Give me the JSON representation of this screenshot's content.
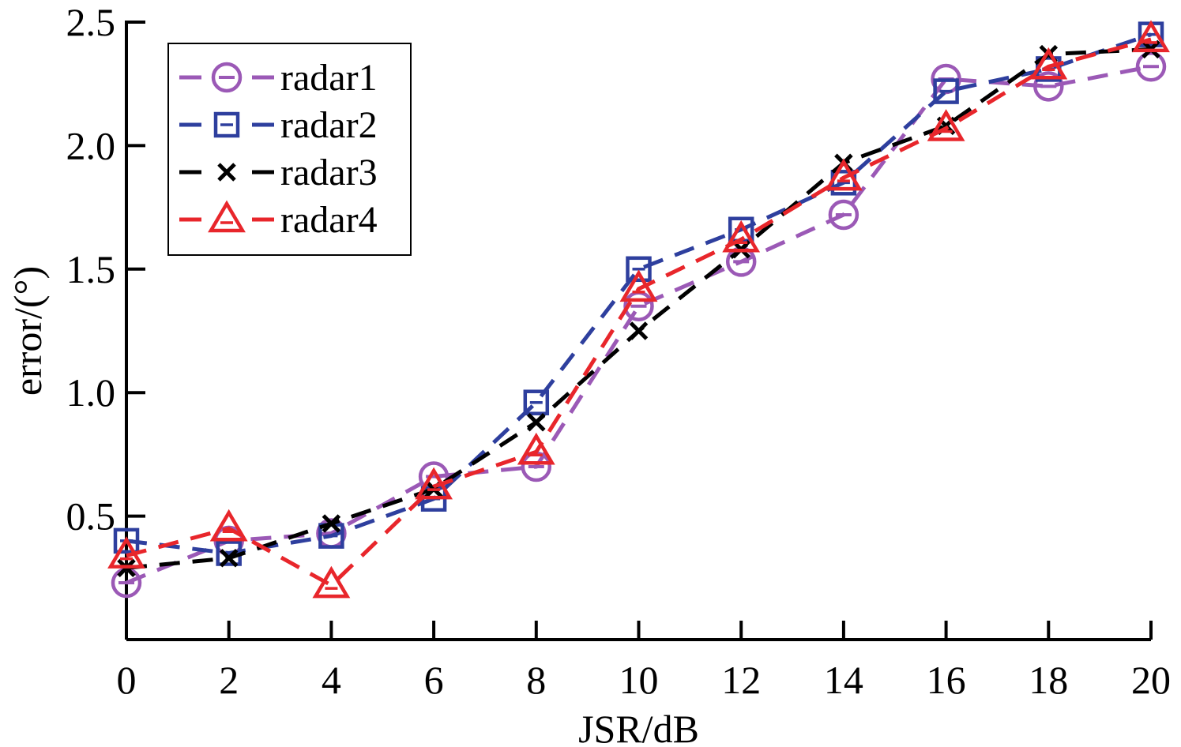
{
  "chart_data": {
    "type": "line",
    "xlabel": "JSR/dB",
    "ylabel": "error/(°)",
    "xlim": [
      0,
      20
    ],
    "ylim": [
      0,
      2.5
    ],
    "x_ticks": [
      0,
      2,
      4,
      6,
      8,
      10,
      12,
      14,
      16,
      18,
      20
    ],
    "y_ticks": [
      0.5,
      1.0,
      1.5,
      2.0,
      2.5
    ],
    "y_tick_labels": [
      "0.5",
      "1.0",
      "1.5",
      "2.0",
      "2.5"
    ],
    "grid": false,
    "legend_position": "top-left",
    "x": [
      0,
      2,
      4,
      6,
      8,
      10,
      12,
      14,
      16,
      18,
      20
    ],
    "series": [
      {
        "name": "radar1",
        "color": "#9b59b6",
        "marker": "circle",
        "values": [
          0.23,
          0.4,
          0.43,
          0.66,
          0.7,
          1.35,
          1.53,
          1.72,
          2.27,
          2.24,
          2.32
        ]
      },
      {
        "name": "radar2",
        "color": "#2e3f9e",
        "marker": "square",
        "values": [
          0.4,
          0.35,
          0.42,
          0.57,
          0.96,
          1.5,
          1.66,
          1.85,
          2.22,
          2.31,
          2.45
        ]
      },
      {
        "name": "radar3",
        "color": "#000000",
        "marker": "x",
        "values": [
          0.29,
          0.33,
          0.47,
          0.61,
          0.88,
          1.25,
          1.58,
          1.93,
          2.08,
          2.37,
          2.39
        ]
      },
      {
        "name": "radar4",
        "color": "#e8262b",
        "marker": "triangle",
        "values": [
          0.34,
          0.45,
          0.22,
          0.62,
          0.76,
          1.42,
          1.62,
          1.87,
          2.07,
          2.32,
          2.43
        ]
      }
    ]
  }
}
